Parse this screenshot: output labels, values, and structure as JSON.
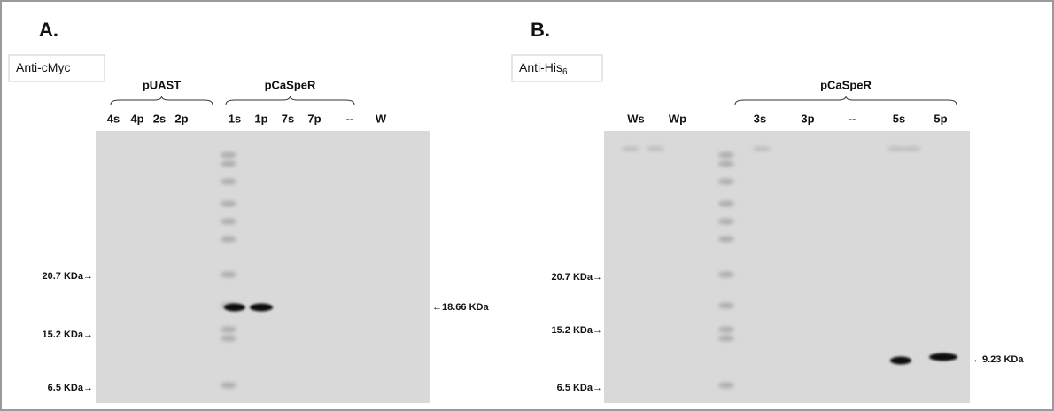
{
  "panels": [
    {
      "label": "A.",
      "antibody": "Anti-cMyc",
      "antibody_sub": null,
      "groups": [
        {
          "name": "pUAST"
        },
        {
          "name": "pCaSpeR"
        }
      ],
      "lanes": [
        "4s",
        "4p",
        "2s",
        "2p",
        "1s",
        "1p",
        "7s",
        "7p",
        "--",
        "W"
      ],
      "markers": [
        "20.7 KDa→",
        "15.2 KDa→",
        "6.5 KDa→"
      ],
      "band_label": "←18.66 KDa"
    },
    {
      "label": "B.",
      "antibody": "Anti-His",
      "antibody_sub": "6",
      "groups": [
        {
          "name": "pCaSpeR"
        }
      ],
      "lanes": [
        "Ws",
        "Wp",
        "3s",
        "3p",
        "--",
        "5s",
        "5p"
      ],
      "markers": [
        "20.7 KDa→",
        "15.2 KDa→",
        "6.5 KDa→"
      ],
      "band_label": "←9.23 KDa"
    }
  ]
}
